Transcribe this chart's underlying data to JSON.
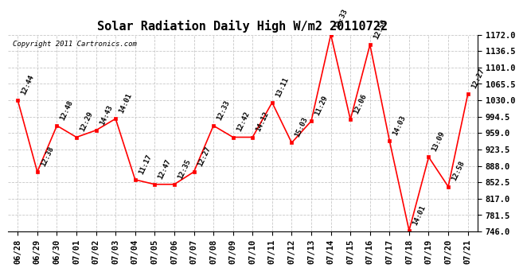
{
  "title": "Solar Radiation Daily High W/m2 20110722",
  "copyright": "Copyright 2011 Cartronics.com",
  "dates": [
    "06/28",
    "06/29",
    "06/30",
    "07/01",
    "07/02",
    "07/03",
    "07/04",
    "07/05",
    "07/06",
    "07/07",
    "07/08",
    "07/09",
    "07/10",
    "07/11",
    "07/12",
    "07/13",
    "07/14",
    "07/15",
    "07/16",
    "07/17",
    "07/18",
    "07/19",
    "07/20",
    "07/21"
  ],
  "values": [
    1030,
    875,
    975,
    950,
    965,
    990,
    858,
    848,
    848,
    875,
    975,
    950,
    950,
    1025,
    938,
    985,
    1172,
    988,
    1150,
    942,
    748,
    907,
    843,
    1043
  ],
  "labels": [
    "12:44",
    "12:38",
    "12:48",
    "12:29",
    "14:43",
    "14:01",
    "11:17",
    "12:47",
    "12:35",
    "12:27",
    "12:33",
    "12:42",
    "14:12",
    "13:11",
    "15:03",
    "11:29",
    "13:33",
    "12:06",
    "12:50",
    "14:03",
    "14:01",
    "13:09",
    "12:58",
    "12:27"
  ],
  "ylim": [
    746.0,
    1172.0
  ],
  "yticks": [
    746.0,
    781.5,
    817.0,
    852.5,
    888.0,
    923.5,
    959.0,
    994.5,
    1030.0,
    1065.5,
    1101.0,
    1136.5,
    1172.0
  ],
  "line_color": "red",
  "marker_color": "red",
  "bg_color": "#ffffff",
  "grid_color": "#c8c8c8",
  "title_fontsize": 11,
  "label_fontsize": 6.5,
  "axis_fontsize": 7.5,
  "copyright_fontsize": 6.5
}
